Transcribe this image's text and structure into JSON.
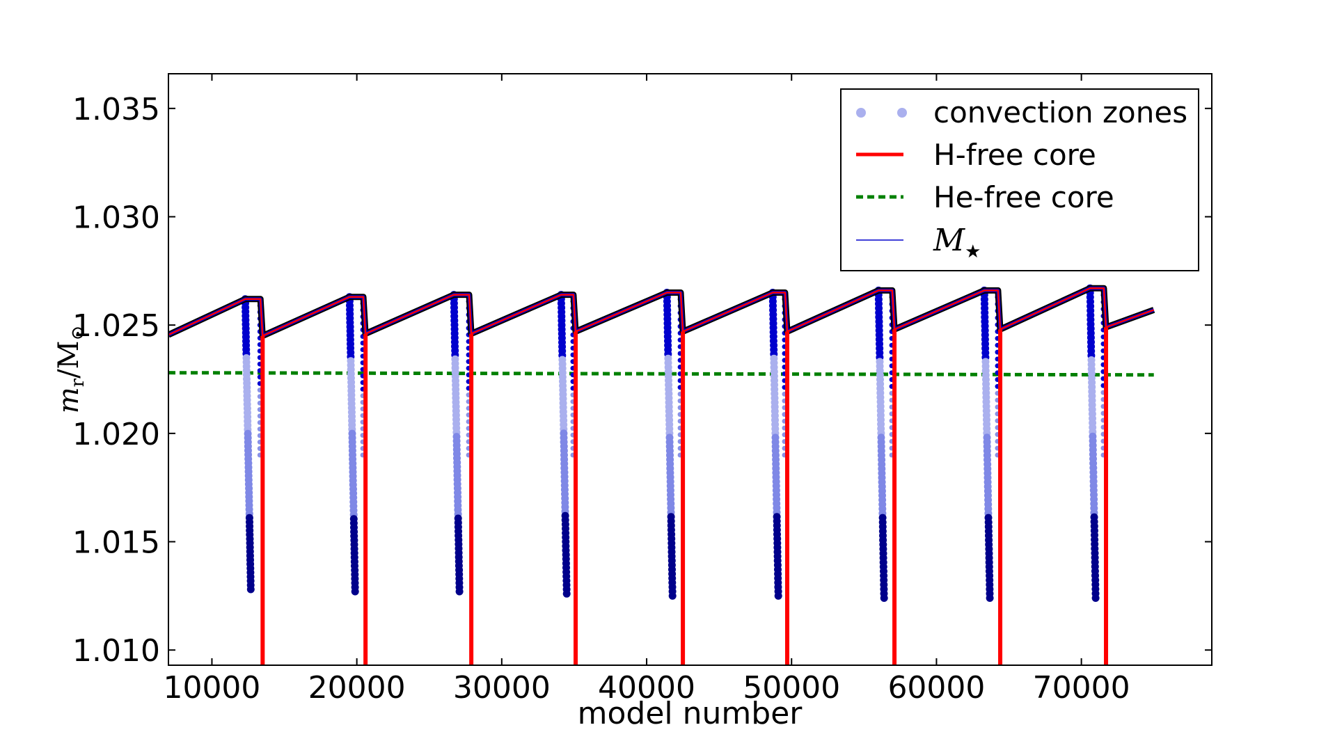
{
  "chart_data": {
    "type": "line",
    "xlabel": "model number",
    "ylabel": "m_r/M_⊙",
    "xlim": [
      7000,
      79000
    ],
    "ylim": [
      1.0093,
      1.0366
    ],
    "xticks": [
      "10000",
      "20000",
      "30000",
      "40000",
      "50000",
      "60000",
      "70000"
    ],
    "yticks": [
      "1.010",
      "1.015",
      "1.020",
      "1.025",
      "1.030",
      "1.035"
    ],
    "grid": false,
    "legend_position": "top-right",
    "legend": [
      {
        "label": "convection zones"
      },
      {
        "label": "H-free core"
      },
      {
        "label": "He-free core"
      },
      {
        "label_main": "M",
        "label_sub": "★"
      }
    ],
    "pulses": [
      {
        "start": 7000,
        "peak_x": 12300,
        "peak_y": 1.0262,
        "drop_x": 13500,
        "drop_y": 1.0245,
        "cz_bottom": 1.0128
      },
      {
        "start": 13500,
        "peak_x": 19500,
        "peak_y": 1.0263,
        "drop_x": 20600,
        "drop_y": 1.0246,
        "cz_bottom": 1.0127
      },
      {
        "start": 20600,
        "peak_x": 26700,
        "peak_y": 1.0264,
        "drop_x": 27900,
        "drop_y": 1.0246,
        "cz_bottom": 1.0127
      },
      {
        "start": 27900,
        "peak_x": 34100,
        "peak_y": 1.0264,
        "drop_x": 35100,
        "drop_y": 1.0247,
        "cz_bottom": 1.0126
      },
      {
        "start": 35100,
        "peak_x": 41400,
        "peak_y": 1.0265,
        "drop_x": 42500,
        "drop_y": 1.0247,
        "cz_bottom": 1.0125
      },
      {
        "start": 42500,
        "peak_x": 48700,
        "peak_y": 1.0265,
        "drop_x": 49700,
        "drop_y": 1.0247,
        "cz_bottom": 1.0125
      },
      {
        "start": 49700,
        "peak_x": 56000,
        "peak_y": 1.0266,
        "drop_x": 57100,
        "drop_y": 1.0248,
        "cz_bottom": 1.0124
      },
      {
        "start": 57100,
        "peak_x": 63300,
        "peak_y": 1.0266,
        "drop_x": 64400,
        "drop_y": 1.0248,
        "cz_bottom": 1.0124
      },
      {
        "start": 64400,
        "peak_x": 70600,
        "peak_y": 1.0267,
        "drop_x": 71700,
        "drop_y": 1.0249,
        "cz_bottom": 1.0124
      }
    ],
    "final_segment": {
      "x": [
        71700,
        75000
      ],
      "y": [
        1.0249,
        1.0257
      ]
    },
    "he_free_core": {
      "x": [
        7000,
        75000
      ],
      "y": [
        1.0228,
        1.0227
      ]
    },
    "colors": {
      "h_free_core": "#ff0000",
      "he_free_core": "#008000",
      "mstar": "#0000cc",
      "convection_dark": "#00008b",
      "convection_mid": "#0000cd",
      "convection_light": "#aab0ee"
    }
  }
}
